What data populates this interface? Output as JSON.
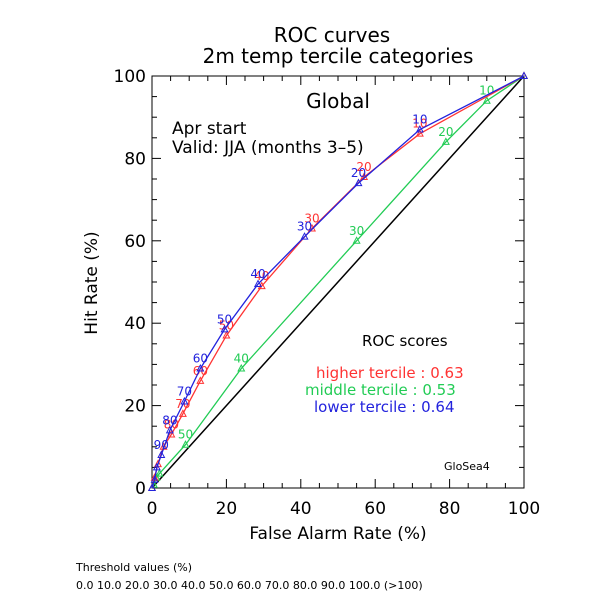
{
  "chart_data": {
    "type": "line",
    "title": "ROC curves",
    "subtitle": "2m temp tercile categories",
    "region": "Global",
    "start": "Apr start",
    "valid": "Valid: JJA (months 3–5)",
    "xlabel": "False Alarm Rate (%)",
    "ylabel": "Hit Rate (%)",
    "xlim": [
      0,
      100
    ],
    "ylim": [
      0,
      100
    ],
    "xticks": [
      "0",
      "20",
      "40",
      "60",
      "80",
      "100"
    ],
    "yticks": [
      "0",
      "20",
      "40",
      "60",
      "80",
      "100"
    ],
    "grid": false,
    "scores_title": "ROC scores",
    "model": "GloSea4",
    "diagonal_color": "#000000",
    "series": [
      {
        "name": "higher tercile",
        "score_label": "higher tercile : 0.63",
        "color": "#ff3333",
        "x": [
          0.0,
          0.7,
          1.6,
          3.1,
          5.2,
          8.3,
          13.0,
          20.0,
          29.5,
          43.0,
          57.0,
          72.0,
          100.0
        ],
        "y": [
          0.0,
          2.5,
          5.8,
          10.0,
          13.0,
          18.0,
          26.0,
          37.0,
          49.0,
          63.0,
          75.5,
          86.0,
          100.0
        ],
        "labels": [
          "",
          "",
          "",
          "",
          "80",
          "70",
          "60",
          "50",
          "40",
          "30",
          "20",
          "10",
          ""
        ]
      },
      {
        "name": "middle tercile",
        "score_label": "middle tercile : 0.53",
        "color": "#22cc55",
        "x": [
          0.0,
          0.5,
          1.2,
          2.0,
          9.0,
          24.0,
          55.0,
          79.0,
          90.0,
          100.0
        ],
        "y": [
          0.0,
          0.8,
          2.5,
          3.5,
          10.5,
          29.0,
          60.0,
          84.0,
          94.0,
          100.0
        ],
        "labels": [
          "",
          "",
          "",
          "",
          "50",
          "40",
          "30",
          "20",
          "10",
          ""
        ]
      },
      {
        "name": "lower tercile",
        "score_label": "lower tercile : 0.64",
        "color": "#2222dd",
        "x": [
          0.0,
          0.7,
          1.3,
          2.5,
          4.8,
          8.7,
          13.0,
          19.5,
          28.5,
          41.0,
          55.5,
          72.0,
          100.0
        ],
        "y": [
          0.0,
          2.0,
          5.0,
          8.0,
          14.0,
          21.0,
          29.0,
          38.5,
          49.5,
          61.0,
          74.0,
          87.0,
          100.0
        ],
        "labels": [
          "",
          "",
          "",
          "90",
          "80",
          "70",
          "60",
          "50",
          "40",
          "30",
          "20",
          "10",
          ""
        ]
      }
    ]
  },
  "footer": {
    "heading": "Threshold values (%)",
    "values": "0.0 10.0 20.0 30.0 40.0 50.0 60.0 70.0 80.0 90.0 100.0 (>100)"
  }
}
